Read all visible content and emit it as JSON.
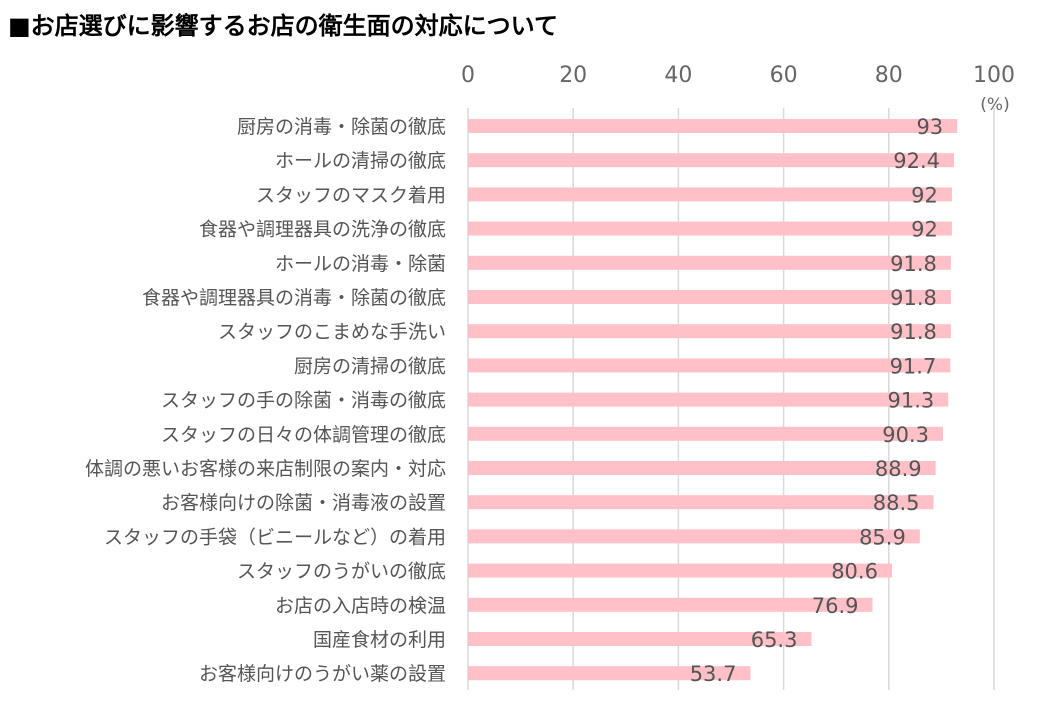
{
  "title": "■お店選びに影響するお店の衛生面の対応について",
  "chart_data": {
    "type": "bar",
    "orientation": "horizontal",
    "unit": "(%)",
    "xlim": [
      0,
      100
    ],
    "ticks": [
      "0",
      "20",
      "40",
      "60",
      "80",
      "100"
    ],
    "grid": true,
    "bar_color": "#FFC0C8",
    "categories": [
      "厨房の消毒・除菌の徹底",
      "ホールの清掃の徹底",
      "スタッフのマスク着用",
      "食器や調理器具の洗浄の徹底",
      "ホールの消毒・除菌",
      "食器や調理器具の消毒・除菌の徹底",
      "スタッフのこまめな手洗い",
      "厨房の清掃の徹底",
      "スタッフの手の除菌・消毒の徹底",
      "スタッフの日々の体調管理の徹底",
      "体調の悪いお客様の来店制限の案内・対応",
      "お客様向けの除菌・消毒液の設置",
      "スタッフの手袋（ビニールなど）の着用",
      "スタッフのうがいの徹底",
      "お店の入店時の検温",
      "国産食材の利用",
      "お客様向けのうがい薬の設置"
    ],
    "values": [
      93,
      92.4,
      92,
      92,
      91.8,
      91.8,
      91.8,
      91.7,
      91.3,
      90.3,
      88.9,
      88.5,
      85.9,
      80.6,
      76.9,
      65.3,
      53.7
    ],
    "value_labels": [
      "93",
      "92.4",
      "92",
      "92",
      "91.8",
      "91.8",
      "91.8",
      "91.7",
      "91.3",
      "90.3",
      "88.9",
      "88.5",
      "85.9",
      "80.6",
      "76.9",
      "65.3",
      "53.7"
    ]
  }
}
